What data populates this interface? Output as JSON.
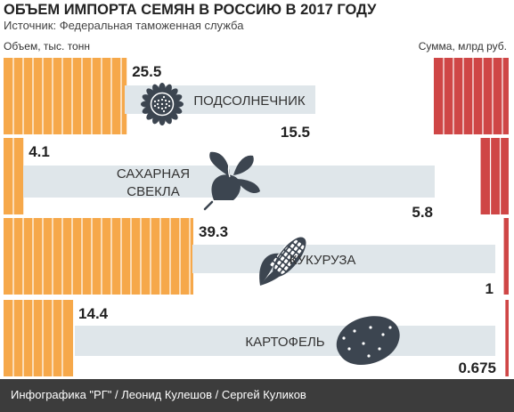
{
  "title": "ОБЪЕМ ИМПОРТА СЕМЯН В РОССИЮ В 2017 ГОДУ",
  "source": "Источник: Федеральная таможенная служба",
  "footer": {
    "credit": "Инфографика \"РГ\" / Леонид Кулешов / Сергей Куликов"
  },
  "colors": {
    "volume": "#f6a84a",
    "sum": "#cf4646",
    "label_band": "#dfe6ea",
    "icon": "#3c4550",
    "footer": "#3c3c3c"
  },
  "chart_data": {
    "type": "bar",
    "left_axis_label": "Объем, тыс. тонн",
    "right_axis_label": "Сумма, млрд руб.",
    "xlim": [
      0,
      80
    ],
    "series": [
      {
        "name": "Объем, тыс. тонн",
        "color": "#f6a84a"
      },
      {
        "name": "Сумма, млрд руб.",
        "color": "#cf4646"
      }
    ],
    "rows": [
      {
        "category": "ПОДСОЛНЕЧНИК",
        "volume": 25.5,
        "volume_label": "25.5",
        "sum": 15.5,
        "sum_label": "15.5",
        "icon": "sunflower-icon"
      },
      {
        "category": "САХАРНАЯ СВЕКЛА",
        "volume": 4.1,
        "volume_label": "4.1",
        "sum": 5.8,
        "sum_label": "5.8",
        "icon": "sugar-beet-icon"
      },
      {
        "category": "КУКУРУЗА",
        "volume": 39.3,
        "volume_label": "39.3",
        "sum": 1,
        "sum_label": "1",
        "icon": "corn-icon"
      },
      {
        "category": "КАРТОФЕЛЬ",
        "volume": 14.4,
        "volume_label": "14.4",
        "sum": 0.675,
        "sum_label": "0.675",
        "icon": "potato-icon"
      }
    ]
  }
}
